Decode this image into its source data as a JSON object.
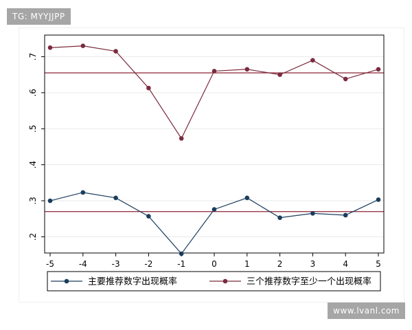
{
  "watermark_top": "TG: MYYJJPP",
  "watermark_bottom": "www.lvanl.com",
  "chart_data": {
    "type": "line",
    "x": [
      -5,
      -4,
      -3,
      -2,
      -1,
      0,
      1,
      2,
      3,
      4,
      5
    ],
    "xlim": [
      -5,
      5
    ],
    "ylim": [
      0.155,
      0.76
    ],
    "y_ticks": [
      0.2,
      0.3,
      0.4,
      0.5,
      0.6,
      0.7
    ],
    "y_tick_labels": [
      ".2",
      ".3",
      ".4",
      ".5",
      ".6",
      ".7"
    ],
    "x_tick_labels": [
      "-5",
      "-4",
      "-3",
      "-2",
      "-1",
      "0",
      "1",
      "2",
      "3",
      "4",
      "5"
    ],
    "grid": "horizontal",
    "legend_position": "bottom",
    "series": [
      {
        "name": "主要推荐数字出现概率",
        "color": "#1a3d5c",
        "values": [
          0.3,
          0.323,
          0.308,
          0.257,
          0.153,
          0.276,
          0.308,
          0.253,
          0.265,
          0.26,
          0.303
        ]
      },
      {
        "name": "三个推荐数字至少一个出现概率",
        "color": "#7b2b3e",
        "values": [
          0.725,
          0.73,
          0.715,
          0.613,
          0.473,
          0.66,
          0.665,
          0.65,
          0.69,
          0.638,
          0.665
        ]
      }
    ],
    "reference_lines": [
      {
        "y": 0.655,
        "color": "#8b2334"
      },
      {
        "y": 0.27,
        "color": "#8b2334"
      }
    ]
  }
}
